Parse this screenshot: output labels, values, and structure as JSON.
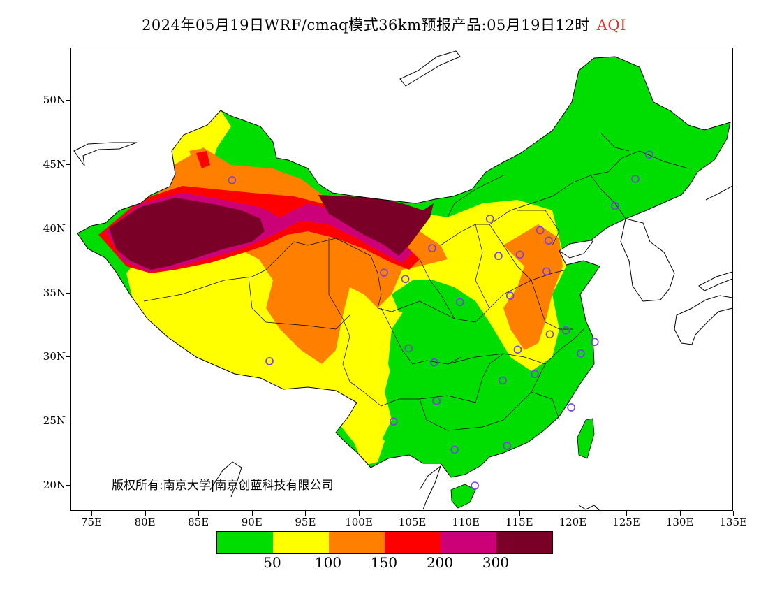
{
  "title": {
    "main": "2024年05月19日WRF/cmaq模式36km预报产品:05月19日12时",
    "aqi": "AQI"
  },
  "axes": {
    "lat_labels": [
      "50N",
      "45N",
      "40N",
      "35N",
      "30N",
      "25N",
      "20N"
    ],
    "lon_labels": [
      "75E",
      "80E",
      "85E",
      "90E",
      "95E",
      "100E",
      "105E",
      "110E",
      "115E",
      "120E",
      "125E",
      "130E",
      "135E"
    ]
  },
  "copyright": "版权所有:南京大学|南京创蓝科技有限公司",
  "legend": {
    "colors": [
      "#00dd00",
      "#ffff00",
      "#ff8000",
      "#ff0000",
      "#cc0077",
      "#7a0028"
    ],
    "labels": [
      "50",
      "100",
      "150",
      "200",
      "300"
    ]
  },
  "colors": {
    "good": "#00dd00",
    "moderate": "#ffff00",
    "sensitive": "#ff8000",
    "unhealthy": "#ff0000",
    "very_unhealthy": "#cc0077",
    "hazardous": "#7a0028",
    "station_marker": "#7b3fe4",
    "title_accent": "#e8322e"
  },
  "chart_data": {
    "type": "heatmap",
    "title": "2024年05月19日WRF/cmaq模式36km预报产品:05月19日12时 AQI",
    "xlim": [
      "73E",
      "135E"
    ],
    "ylim": [
      "18N",
      "54N"
    ],
    "stations": [
      {
        "lon": 87.6,
        "lat": 43.8
      },
      {
        "lon": 91.1,
        "lat": 29.7
      },
      {
        "lon": 101.8,
        "lat": 36.6
      },
      {
        "lon": 103.8,
        "lat": 36.1
      },
      {
        "lon": 106.3,
        "lat": 38.5
      },
      {
        "lon": 111.7,
        "lat": 40.8
      },
      {
        "lon": 112.5,
        "lat": 37.9
      },
      {
        "lon": 114.5,
        "lat": 38.0
      },
      {
        "lon": 116.4,
        "lat": 39.9
      },
      {
        "lon": 117.2,
        "lat": 39.1
      },
      {
        "lon": 117.0,
        "lat": 36.7
      },
      {
        "lon": 113.6,
        "lat": 34.8
      },
      {
        "lon": 108.9,
        "lat": 34.3
      },
      {
        "lon": 104.1,
        "lat": 30.7
      },
      {
        "lon": 106.5,
        "lat": 29.6
      },
      {
        "lon": 106.7,
        "lat": 26.6
      },
      {
        "lon": 102.7,
        "lat": 25.0
      },
      {
        "lon": 108.4,
        "lat": 22.8
      },
      {
        "lon": 113.3,
        "lat": 23.1
      },
      {
        "lon": 110.3,
        "lat": 20.0
      },
      {
        "lon": 112.9,
        "lat": 28.2
      },
      {
        "lon": 115.9,
        "lat": 28.7
      },
      {
        "lon": 114.3,
        "lat": 30.6
      },
      {
        "lon": 117.3,
        "lat": 31.8
      },
      {
        "lon": 118.8,
        "lat": 32.1
      },
      {
        "lon": 120.2,
        "lat": 30.3
      },
      {
        "lon": 121.5,
        "lat": 31.2
      },
      {
        "lon": 119.3,
        "lat": 26.1
      },
      {
        "lon": 123.4,
        "lat": 41.8
      },
      {
        "lon": 125.3,
        "lat": 43.9
      },
      {
        "lon": 126.6,
        "lat": 45.8
      }
    ],
    "legend_breaks": [
      50,
      100,
      150,
      200,
      300
    ]
  }
}
